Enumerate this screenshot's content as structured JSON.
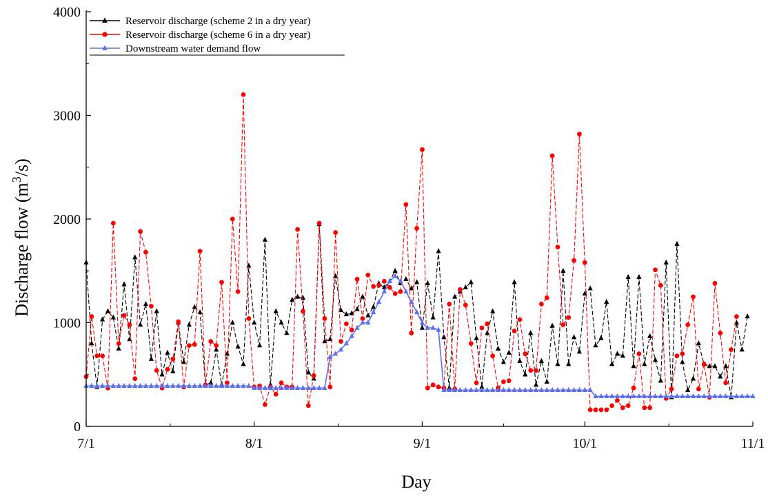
{
  "chart_data": {
    "type": "line",
    "title": "",
    "xlabel": "Day",
    "ylabel": "Discharge flow (m3/s)",
    "ylabel_parts": {
      "before": "Discharge flow (m",
      "sup": "3",
      "after": "/s)"
    },
    "x_unit": "days since 7/1",
    "xlim": [
      0,
      123
    ],
    "ylim": [
      0,
      4000
    ],
    "x_ticks": [
      {
        "day": 0,
        "label": "7/1"
      },
      {
        "day": 31,
        "label": "8/1"
      },
      {
        "day": 62,
        "label": "9/1"
      },
      {
        "day": 92,
        "label": "10/1"
      },
      {
        "day": 123,
        "label": "11/1"
      }
    ],
    "y_ticks": [
      0,
      1000,
      2000,
      3000,
      4000
    ],
    "grid": false,
    "legend_position": "top-left",
    "series": [
      {
        "name": "Reservoir discharge (scheme 2 in a dry year)",
        "color": "#000000",
        "marker": "triangle",
        "line_style": "dashed",
        "values": [
          1580,
          800,
          380,
          1030,
          1110,
          1050,
          750,
          1370,
          840,
          1630,
          980,
          1180,
          650,
          1110,
          500,
          710,
          530,
          1000,
          620,
          980,
          1150,
          1100,
          400,
          420,
          740,
          400,
          700,
          1000,
          770,
          600,
          1550,
          1000,
          780,
          1800,
          400,
          1110,
          1000,
          900,
          1220,
          1250,
          1240,
          520,
          460,
          1950,
          820,
          840,
          1450,
          1120,
          1080,
          1090,
          1130,
          1250,
          1070,
          1150,
          1380,
          1340,
          1400,
          1500,
          1380,
          1420,
          1330,
          1390,
          950,
          1380,
          1050,
          1690,
          860,
          370,
          1250,
          1300,
          1340,
          1390,
          850,
          380,
          900,
          1110,
          750,
          620,
          710,
          1390,
          630,
          500,
          900,
          400,
          630,
          430,
          970,
          600,
          1500,
          600,
          860,
          720,
          1280,
          1330,
          780,
          850,
          1200,
          600,
          700,
          680,
          1440,
          580,
          1440,
          600,
          870,
          640,
          440,
          1580,
          280,
          1760,
          620,
          350,
          460,
          800,
          600,
          580,
          580,
          480,
          580,
          280,
          1000,
          740,
          1060
        ]
      },
      {
        "name": "Reservoir discharge (scheme 6 in a dry year)",
        "color": "#ff0000",
        "marker": "circle",
        "line_style": "dashed",
        "values": [
          480,
          1060,
          680,
          680,
          370,
          1960,
          800,
          1070,
          980,
          460,
          1880,
          1680,
          1160,
          540,
          370,
          550,
          650,
          1010,
          380,
          780,
          790,
          1690,
          400,
          820,
          780,
          1390,
          420,
          2000,
          1300,
          3200,
          1040,
          380,
          390,
          210,
          380,
          310,
          420,
          380,
          380,
          1900,
          1110,
          200,
          490,
          1960,
          1040,
          380,
          1870,
          820,
          990,
          930,
          1420,
          1040,
          1460,
          1350,
          1360,
          1400,
          1340,
          1280,
          1300,
          2140,
          900,
          1910,
          2670,
          370,
          400,
          380,
          370,
          1180,
          360,
          1320,
          1170,
          800,
          420,
          950,
          990,
          680,
          370,
          430,
          440,
          920,
          1030,
          700,
          540,
          540,
          1180,
          1240,
          2610,
          1730,
          980,
          1050,
          1600,
          2820,
          1580,
          160,
          160,
          160,
          160,
          200,
          250,
          180,
          200,
          370,
          700,
          180,
          180,
          1510,
          1360,
          270,
          360,
          680,
          700,
          980,
          1250,
          360,
          600,
          280,
          1380,
          900,
          420,
          740,
          1060
        ]
      },
      {
        "name": "Downstream water demand flow",
        "color": "#5b6ff2",
        "marker": "triangle",
        "line_style": "solid",
        "values": [
          390,
          390,
          390,
          390,
          390,
          390,
          390,
          390,
          390,
          390,
          390,
          390,
          390,
          390,
          390,
          390,
          390,
          390,
          390,
          390,
          390,
          390,
          390,
          390,
          390,
          390,
          390,
          390,
          390,
          390,
          390,
          370,
          370,
          370,
          370,
          370,
          370,
          370,
          370,
          370,
          370,
          370,
          370,
          370,
          370,
          670,
          700,
          740,
          800,
          870,
          950,
          1000,
          1000,
          1100,
          1200,
          1300,
          1400,
          1450,
          1400,
          1300,
          1200,
          1100,
          1000,
          950,
          950,
          930,
          350,
          350,
          350,
          350,
          350,
          350,
          350,
          350,
          350,
          350,
          350,
          350,
          350,
          350,
          350,
          350,
          350,
          350,
          350,
          350,
          350,
          350,
          350,
          350,
          350,
          350,
          350,
          350,
          290,
          290,
          290,
          290,
          290,
          290,
          290,
          290,
          290,
          290,
          290,
          290,
          290,
          290,
          290,
          290,
          290,
          290,
          290,
          290,
          290,
          290,
          290,
          290,
          290,
          290,
          290,
          290,
          290,
          290
        ]
      }
    ]
  }
}
